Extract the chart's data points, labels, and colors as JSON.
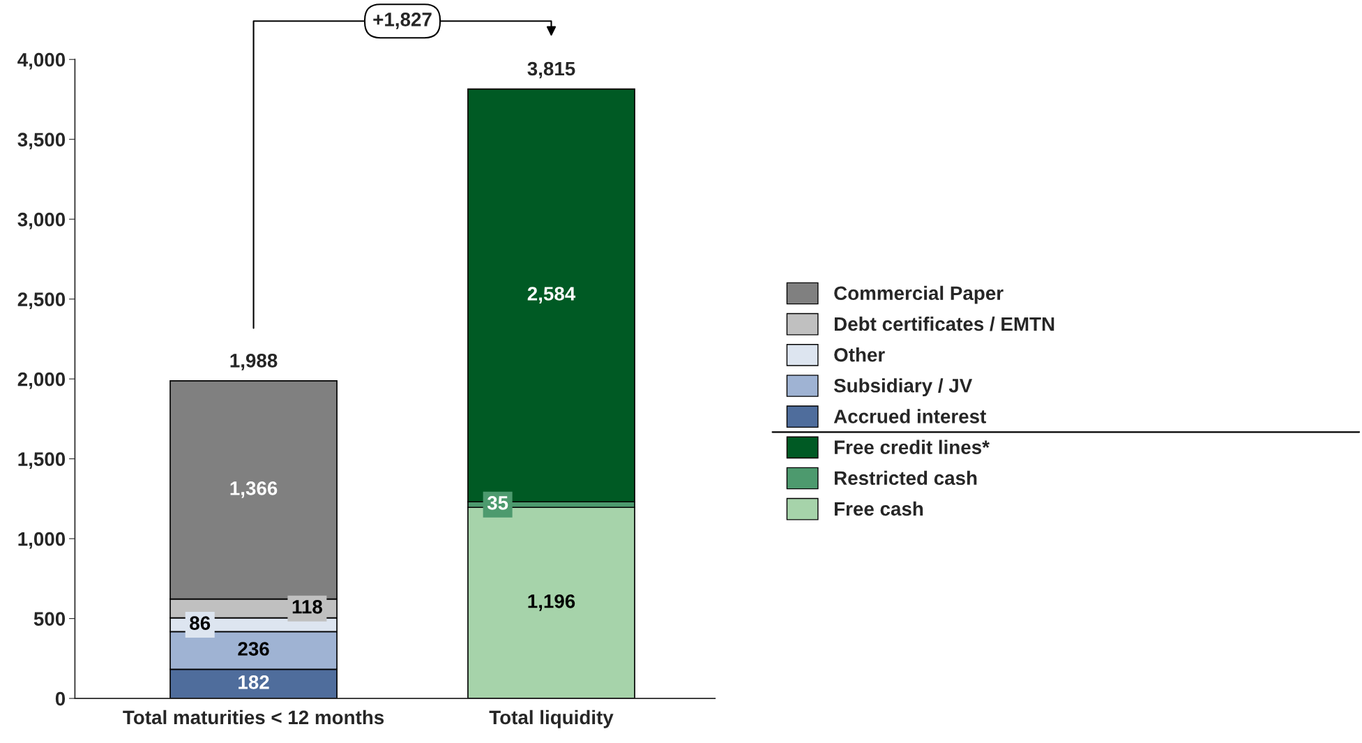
{
  "chart_data": {
    "type": "bar",
    "stacked": true,
    "categories": [
      "Total maturities < 12 months",
      "Total liquidity"
    ],
    "series": [
      {
        "name": "Accrued interest",
        "color": "#4f6d9c",
        "values": [
          182,
          null
        ],
        "value_labels": [
          "182",
          null
        ]
      },
      {
        "name": "Subsidiary / JV",
        "color": "#9fb3d3",
        "values": [
          236,
          null
        ],
        "value_labels": [
          "236",
          null
        ]
      },
      {
        "name": "Other",
        "color": "#dde5f0",
        "values": [
          86,
          null
        ],
        "value_labels": [
          "86",
          null
        ]
      },
      {
        "name": "Debt certificates / EMTN",
        "color": "#c0c0c0",
        "values": [
          118,
          null
        ],
        "value_labels": [
          "118",
          null
        ]
      },
      {
        "name": "Commercial Paper",
        "color": "#808080",
        "values": [
          1366,
          null
        ],
        "value_labels": [
          "1,366",
          null
        ]
      },
      {
        "name": "Free cash",
        "color": "#a6d3aa",
        "values": [
          null,
          1196
        ],
        "value_labels": [
          null,
          "1,196"
        ]
      },
      {
        "name": "Restricted cash",
        "color": "#4d9a6e",
        "values": [
          null,
          35
        ],
        "value_labels": [
          null,
          "35"
        ]
      },
      {
        "name": "Free credit lines*",
        "color": "#005a24",
        "values": [
          null,
          2584
        ],
        "value_labels": [
          null,
          "2,584"
        ]
      }
    ],
    "totals": [
      "1,988",
      "3,815"
    ],
    "annotations": [
      "+1,827"
    ],
    "ylim": [
      0,
      4000
    ],
    "yticks": [
      0,
      500,
      {
        "value": 1000,
        "label": "1,000"
      },
      {
        "value": 1500,
        "label": "1,500"
      },
      {
        "value": 2000,
        "label": "2,000"
      },
      {
        "value": 2500,
        "label": "2,500"
      },
      {
        "value": 3000,
        "label": "3,000"
      },
      {
        "value": 3500,
        "label": "3,500"
      },
      {
        "value": 4000,
        "label": "4,000"
      }
    ],
    "legend": "right",
    "grid": false
  }
}
